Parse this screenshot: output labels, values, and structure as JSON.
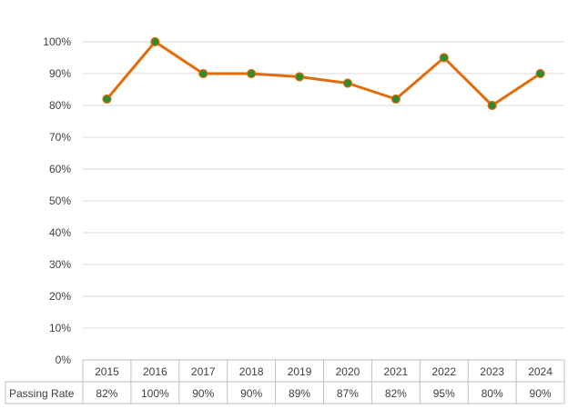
{
  "chart_data": {
    "type": "line",
    "categories": [
      "2015",
      "2016",
      "2017",
      "2018",
      "2019",
      "2020",
      "2021",
      "2022",
      "2023",
      "2024"
    ],
    "series": [
      {
        "name": "Passing Rate",
        "values": [
          82,
          100,
          90,
          90,
          89,
          87,
          82,
          95,
          80,
          90
        ],
        "value_labels": [
          "82%",
          "100%",
          "90%",
          "90%",
          "89%",
          "87%",
          "82%",
          "95%",
          "80%",
          "90%"
        ]
      }
    ],
    "yticks": [
      "0%",
      "10%",
      "20%",
      "30%",
      "40%",
      "50%",
      "60%",
      "70%",
      "80%",
      "90%",
      "100%"
    ],
    "ylim": [
      0,
      100
    ],
    "grid": true,
    "legend": "data-table",
    "colors": {
      "line": "#E36C0A",
      "marker": "#2E8B2E",
      "grid": "#D9D9D9",
      "table_border": "#BFBFBF"
    }
  }
}
